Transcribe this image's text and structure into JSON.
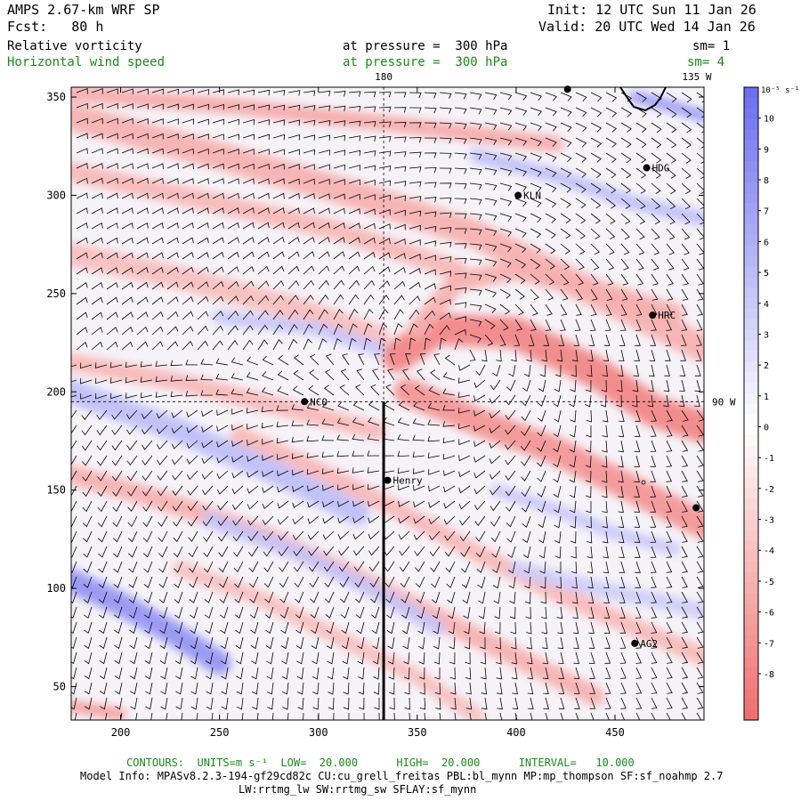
{
  "header": {
    "model_line1": "AMPS 2.67-km WRF SP",
    "model_line2": "Fcst:   80 h",
    "init_line": "Init: 12 UTC Sun 11 Jan 26",
    "valid_line": "Valid: 20 UTC Wed 14 Jan 26",
    "field1_name": "Relative vorticity",
    "field1_level": "at pressure =  300 hPa",
    "field1_sm": "sm= 1",
    "field2_name": "Horizontal wind speed",
    "field2_level": "at pressure =  300 hPa",
    "field2_sm": "sm= 4"
  },
  "footer": {
    "contours_line": "CONTOURS:  UNITS=m s⁻¹  LOW=  20.000      HIGH=  20.000      INTERVAL=   10.000",
    "model_info_line1": "Model Info: MPASv8.2.3-194-gf29cd82c CU:cu_grell_freitas PBL:bl_mynn MP:mp_thompson SF:sf_noahmp 2.7",
    "model_info_line2": "LW:rrtmg_lw SW:rrtmg_sw SFLAY:sf_mynn"
  },
  "chart_data": {
    "type": "heatmap",
    "title": "Relative vorticity / Horizontal wind speed at 300 hPa",
    "x_ticks": [
      200,
      250,
      300,
      350,
      400,
      450
    ],
    "y_ticks": [
      50,
      100,
      150,
      200,
      250,
      300,
      350
    ],
    "xlim": [
      175,
      495
    ],
    "ylim": [
      33,
      355
    ],
    "meridian_labels": [
      {
        "text": "180",
        "x": 333,
        "y": 355
      },
      {
        "text": "135 W",
        "x": 470,
        "y": 355
      },
      {
        "text": "90 W",
        "x": 495,
        "y": 195
      }
    ],
    "stations": [
      {
        "name": "HDG",
        "x": 466,
        "y": 314
      },
      {
        "name": "KLN",
        "x": 401,
        "y": 300
      },
      {
        "name": "HRC",
        "x": 469,
        "y": 239
      },
      {
        "name": "NCO",
        "x": 293,
        "y": 195
      },
      {
        "name": "Henry",
        "x": 335,
        "y": 155
      },
      {
        "name": "AG2",
        "x": 460,
        "y": 72
      }
    ],
    "unlabeled_stations": [
      {
        "x": 491,
        "y": 141
      },
      {
        "x": 426,
        "y": 354
      }
    ],
    "cross_section": {
      "x": 333,
      "y0": 33,
      "y1": 195
    },
    "colorbar": {
      "unit_label": "10⁻⁵ s⁻¹",
      "ticks": [
        10,
        9,
        8,
        7,
        6,
        5,
        4,
        3,
        2,
        1,
        0,
        -1,
        -2,
        -3,
        -4,
        -5,
        -6,
        -7,
        -8
      ],
      "range": [
        -9.5,
        11
      ],
      "positive_color": "#6c6cf0",
      "negative_color": "#f06c6c",
      "zero_color": "#ffffff"
    },
    "bands": [
      {
        "sign": "negative",
        "strength": 0.55,
        "pts": [
          [
            175,
            340
          ],
          [
            250,
            320
          ],
          [
            320,
            300
          ],
          [
            380,
            280
          ],
          [
            440,
            250
          ],
          [
            495,
            222
          ]
        ],
        "width": 14
      },
      {
        "sign": "negative",
        "strength": 0.5,
        "pts": [
          [
            175,
            312
          ],
          [
            240,
            298
          ],
          [
            310,
            282
          ],
          [
            370,
            262
          ]
        ],
        "width": 10
      },
      {
        "sign": "negative",
        "strength": 0.45,
        "pts": [
          [
            175,
            270
          ],
          [
            230,
            258
          ],
          [
            290,
            242
          ],
          [
            330,
            228
          ]
        ],
        "width": 12
      },
      {
        "sign": "negative",
        "strength": 0.6,
        "pts": [
          [
            175,
            352
          ],
          [
            260,
            345
          ],
          [
            340,
            336
          ],
          [
            420,
            326
          ]
        ],
        "width": 8
      },
      {
        "sign": "negative",
        "strength": 0.85,
        "pts": [
          [
            340,
            218
          ],
          [
            360,
            232
          ],
          [
            400,
            230
          ],
          [
            440,
            210
          ],
          [
            470,
            190
          ],
          [
            495,
            182
          ]
        ],
        "width": 16
      },
      {
        "sign": "negative",
        "strength": 0.75,
        "pts": [
          [
            345,
            200
          ],
          [
            380,
            185
          ],
          [
            420,
            170
          ],
          [
            460,
            150
          ],
          [
            495,
            132
          ]
        ],
        "width": 14
      },
      {
        "sign": "negative",
        "strength": 0.55,
        "pts": [
          [
            350,
            232
          ],
          [
            370,
            256
          ],
          [
            400,
            262
          ],
          [
            440,
            252
          ],
          [
            480,
            240
          ]
        ],
        "width": 10
      },
      {
        "sign": "negative",
        "strength": 0.5,
        "pts": [
          [
            175,
            215
          ],
          [
            230,
            205
          ],
          [
            290,
            190
          ],
          [
            330,
            180
          ]
        ],
        "width": 9
      },
      {
        "sign": "negative",
        "strength": 0.55,
        "pts": [
          [
            175,
            158
          ],
          [
            220,
            145
          ],
          [
            270,
            128
          ],
          [
            320,
            105
          ],
          [
            360,
            85
          ],
          [
            400,
            65
          ],
          [
            440,
            45
          ]
        ],
        "width": 10
      },
      {
        "sign": "negative",
        "strength": 0.5,
        "pts": [
          [
            260,
            178
          ],
          [
            300,
            160
          ],
          [
            340,
            140
          ],
          [
            380,
            118
          ],
          [
            420,
            98
          ],
          [
            460,
            80
          ],
          [
            495,
            65
          ]
        ],
        "width": 9
      },
      {
        "sign": "negative",
        "strength": 0.45,
        "pts": [
          [
            230,
            110
          ],
          [
            270,
            95
          ],
          [
            310,
            75
          ],
          [
            350,
            55
          ],
          [
            380,
            35
          ]
        ],
        "width": 8
      },
      {
        "sign": "negative",
        "strength": 0.7,
        "pts": [
          [
            175,
            40
          ],
          [
            200,
            36
          ]
        ],
        "width": 6
      },
      {
        "sign": "positive",
        "strength": 0.45,
        "pts": [
          [
            175,
            200
          ],
          [
            230,
            180
          ],
          [
            280,
            158
          ],
          [
            320,
            138
          ]
        ],
        "width": 12
      },
      {
        "sign": "positive",
        "strength": 0.75,
        "pts": [
          [
            175,
            104
          ],
          [
            200,
            92
          ],
          [
            225,
            78
          ],
          [
            250,
            62
          ]
        ],
        "width": 12
      },
      {
        "sign": "positive",
        "strength": 0.4,
        "pts": [
          [
            245,
            135
          ],
          [
            290,
            118
          ],
          [
            330,
            98
          ],
          [
            360,
            80
          ]
        ],
        "width": 8
      },
      {
        "sign": "positive",
        "strength": 0.45,
        "pts": [
          [
            380,
            320
          ],
          [
            420,
            310
          ],
          [
            460,
            296
          ],
          [
            495,
            288
          ]
        ],
        "width": 7
      },
      {
        "sign": "positive",
        "strength": 0.7,
        "pts": [
          [
            460,
            350
          ],
          [
            480,
            345
          ],
          [
            495,
            340
          ]
        ],
        "width": 6
      },
      {
        "sign": "positive",
        "strength": 0.35,
        "pts": [
          [
            400,
            110
          ],
          [
            440,
            100
          ],
          [
            480,
            92
          ],
          [
            495,
            88
          ]
        ],
        "width": 8
      },
      {
        "sign": "positive",
        "strength": 0.4,
        "pts": [
          [
            250,
            238
          ],
          [
            300,
            232
          ],
          [
            330,
            222
          ]
        ],
        "width": 7
      },
      {
        "sign": "positive",
        "strength": 0.4,
        "pts": [
          [
            390,
            150
          ],
          [
            420,
            140
          ],
          [
            450,
            128
          ],
          [
            480,
            120
          ]
        ],
        "width": 6
      }
    ]
  }
}
